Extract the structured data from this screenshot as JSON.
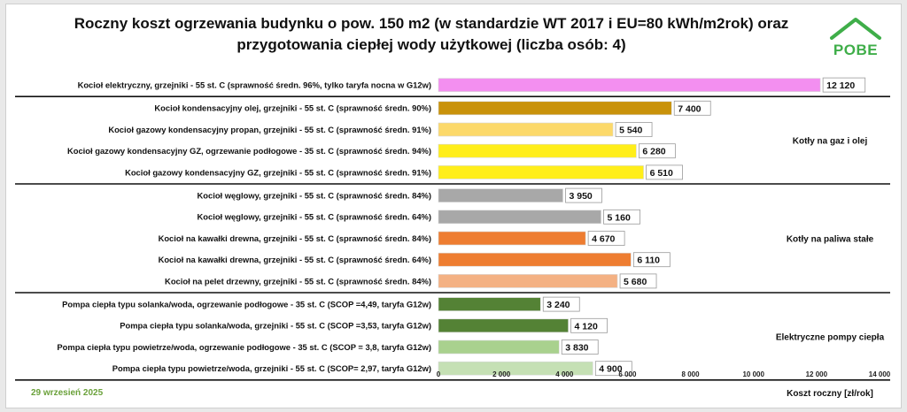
{
  "title_line1": "Roczny koszt ogrzewania budynku o pow. 150 m2 (w standardzie WT 2017 i EU=80 kWh/m2rok) oraz",
  "title_line2": "przygotowania ciepłej wody użytkowej (liczba osób: 4)",
  "logo_text": "POBE",
  "date": "29 wrzesień 2025",
  "colors": {
    "logo": "#3fae49",
    "date": "#6aa13a"
  },
  "chart_data": {
    "type": "bar",
    "orientation": "horizontal",
    "xlabel": "Koszt roczny [zł/rok]",
    "xlim": [
      0,
      14000
    ],
    "xticks": [
      0,
      2000,
      4000,
      6000,
      8000,
      10000,
      12000,
      14000
    ],
    "xtick_labels": [
      "0",
      "2 000",
      "4 000",
      "6 000",
      "8 000",
      "10 000",
      "12 000",
      "14 000"
    ],
    "grid": false,
    "categories": [
      "Kocioł  elektryczny,  grzejniki - 55 st. C  (sprawność średn. 96%, tylko taryfa nocna w G12w)",
      "Kocioł  kondensacyjny olej,  grzejniki - 55 st. C (sprawność średn. 90%)",
      "Kocioł gazowy kondensacyjny propan, grzejniki - 55 st. C (sprawność średn. 91%)",
      "Kocioł gazowy kondensacyjny GZ, ogrzewanie podłogowe - 35 st. C (sprawność średn. 94%)",
      "Kocioł gazowy kondensacyjny GZ, grzejniki - 55 st. C (sprawność średn. 91%)",
      "Kocioł węglowy,  grzejniki - 55 st. C (sprawność średn. 84%)",
      "Kocioł węglowy,  grzejniki - 55 st. C (sprawność średn. 64%)",
      "Kocioł na kawałki drewna, grzejniki - 55 st. C (sprawność średn. 84%)",
      "Kocioł na kawałki drewna, grzejniki - 55 st. C (sprawność średn. 64%)",
      "Kocioł na pelet drzewny, grzejniki - 55 st. C (sprawność średn. 84%)",
      "Pompa ciepła typu solanka/woda, ogrzewanie podłogowe - 35 st. C (SCOP =4,49, taryfa G12w)",
      "Pompa ciepła typu solanka/woda, grzejniki - 55 st. C (SCOP =3,53, taryfa G12w)",
      "Pompa ciepła typu powietrze/woda, ogrzewanie podłogowe - 35 st. C (SCOP = 3,8, taryfa G12w)",
      "Pompa ciepła typu powietrze/woda, grzejniki - 55 st. C (SCOP= 2,97, taryfa G12w)"
    ],
    "values": [
      12120,
      7400,
      5540,
      6280,
      6510,
      3950,
      5160,
      4670,
      6110,
      5680,
      3240,
      4120,
      3830,
      4900
    ],
    "value_labels": [
      "12 120",
      "7 400",
      "5 540",
      "6 280",
      "6 510",
      "3 950",
      "5 160",
      "4 670",
      "6 110",
      "5 680",
      "3 240",
      "4 120",
      "3 830",
      "4 900"
    ],
    "bar_colors": [
      "#f38ff0",
      "#c9920a",
      "#fcd96a",
      "#ffee1a",
      "#ffee1a",
      "#a8a8a8",
      "#a8a8a8",
      "#ee7d31",
      "#ee7d31",
      "#f4b183",
      "#548235",
      "#548235",
      "#a9d18e",
      "#c5e0b4"
    ],
    "groups": [
      {
        "label": "",
        "start": 0,
        "end": 0
      },
      {
        "label": "Kotły na gaz i olej",
        "start": 1,
        "end": 4
      },
      {
        "label": "Kotły na paliwa stałe",
        "start": 5,
        "end": 9
      },
      {
        "label": "Elektryczne pompy ciepła",
        "start": 10,
        "end": 13
      }
    ]
  }
}
